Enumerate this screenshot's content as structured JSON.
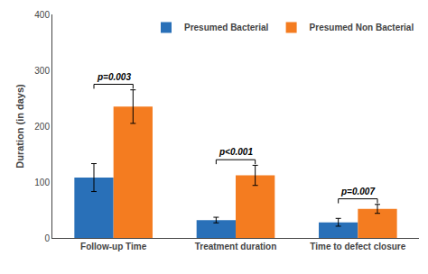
{
  "chart_data": {
    "type": "bar",
    "categories": [
      "Follow-up Time",
      "Treatment duration",
      "Time to defect closure"
    ],
    "series": [
      {
        "name": "Presumed Bacterial",
        "color": "#2970b8",
        "values": [
          108,
          32,
          28
        ],
        "errors": [
          25,
          5,
          7
        ]
      },
      {
        "name": "Presumed Non Bacterial",
        "color": "#f47c20",
        "values": [
          235,
          112,
          52
        ],
        "errors": [
          30,
          18,
          8
        ]
      }
    ],
    "ylabel": "Duration (in days)",
    "ylim": [
      0,
      400
    ],
    "yticks": [
      0,
      100,
      200,
      300,
      400
    ],
    "grid": false,
    "legend": "upper right",
    "annotations": [
      {
        "text": "p=0.003",
        "category": "Follow-up Time"
      },
      {
        "text": "p<0.001",
        "category": "Treatment duration"
      },
      {
        "text": "p=0.007",
        "category": "Time to defect closure"
      }
    ]
  }
}
